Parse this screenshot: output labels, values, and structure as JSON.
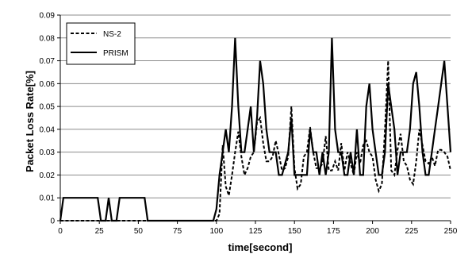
{
  "chart_data": {
    "type": "line",
    "title": "",
    "xlabel": "time[second]",
    "ylabel": "Packet Loss Rate[%]",
    "xlim": [
      0,
      250
    ],
    "ylim": [
      0,
      0.09
    ],
    "x_ticks": [
      0,
      25,
      50,
      75,
      100,
      125,
      150,
      175,
      200,
      225,
      250
    ],
    "x_tick_labels": [
      "0",
      "25",
      "50",
      "75",
      "100",
      "125",
      "150",
      "175",
      "200",
      "225",
      "250"
    ],
    "y_ticks": [
      0,
      0.01,
      0.02,
      0.03,
      0.04,
      0.05,
      0.06,
      0.07,
      0.08,
      0.09
    ],
    "y_tick_labels": [
      "0",
      "0.01",
      "0.02",
      "0.03",
      "0.04",
      "0.05",
      "0.06",
      "0.07",
      "0.08",
      "0.09"
    ],
    "grid": "horizontal",
    "legend_position": "top-left",
    "series": [
      {
        "name": "NS-2",
        "style": "dashed",
        "color": "#000000",
        "x": [
          0,
          5,
          10,
          15,
          20,
          25,
          30,
          35,
          40,
          45,
          50,
          55,
          60,
          65,
          70,
          75,
          80,
          85,
          90,
          95,
          100,
          102,
          104,
          106,
          108,
          110,
          112,
          114,
          116,
          118,
          120,
          122,
          124,
          126,
          128,
          130,
          132,
          134,
          136,
          138,
          140,
          142,
          144,
          146,
          148,
          150,
          152,
          154,
          156,
          158,
          160,
          162,
          164,
          166,
          168,
          170,
          172,
          174,
          176,
          178,
          180,
          182,
          184,
          186,
          188,
          190,
          192,
          194,
          196,
          198,
          200,
          202,
          204,
          206,
          208,
          210,
          212,
          214,
          216,
          218,
          220,
          222,
          224,
          226,
          228,
          230,
          232,
          234,
          236,
          238,
          240,
          242,
          244,
          246,
          248,
          250
        ],
        "y": [
          0,
          0,
          0,
          0,
          0,
          0,
          0,
          0,
          0,
          0,
          0,
          0,
          0,
          0,
          0,
          0,
          0,
          0,
          0,
          0,
          0,
          0.003,
          0.033,
          0.015,
          0.011,
          0.02,
          0.03,
          0.039,
          0.028,
          0.02,
          0.023,
          0.028,
          0.03,
          0.043,
          0.045,
          0.034,
          0.026,
          0.026,
          0.028,
          0.035,
          0.029,
          0.022,
          0.023,
          0.028,
          0.05,
          0.023,
          0.014,
          0.016,
          0.028,
          0.03,
          0.041,
          0.03,
          0.023,
          0.023,
          0.025,
          0.037,
          0.022,
          0.022,
          0.026,
          0.022,
          0.034,
          0.022,
          0.03,
          0.025,
          0.02,
          0.03,
          0.025,
          0.033,
          0.035,
          0.03,
          0.028,
          0.018,
          0.013,
          0.016,
          0.04,
          0.07,
          0.022,
          0.02,
          0.031,
          0.038,
          0.026,
          0.024,
          0.018,
          0.016,
          0.026,
          0.04,
          0.033,
          0.026,
          0.025,
          0.028,
          0.024,
          0.031,
          0.031,
          0.03,
          0.028,
          0.022
        ]
      },
      {
        "name": "PRISM",
        "style": "solid",
        "color": "#000000",
        "x": [
          0,
          2,
          5,
          10,
          15,
          20,
          24,
          26,
          29,
          31,
          33,
          36,
          38,
          40,
          45,
          50,
          54,
          56,
          60,
          65,
          70,
          75,
          80,
          85,
          90,
          95,
          98,
          100,
          102,
          104,
          106,
          108,
          110,
          112,
          114,
          116,
          118,
          120,
          122,
          124,
          126,
          128,
          130,
          132,
          134,
          136,
          138,
          140,
          142,
          144,
          146,
          148,
          150,
          152,
          154,
          156,
          158,
          160,
          162,
          164,
          166,
          168,
          170,
          172,
          174,
          176,
          178,
          180,
          182,
          184,
          186,
          188,
          190,
          192,
          194,
          196,
          198,
          200,
          202,
          204,
          206,
          208,
          210,
          212,
          214,
          216,
          218,
          220,
          222,
          224,
          226,
          228,
          230,
          232,
          234,
          236,
          238,
          240,
          242,
          244,
          246,
          248,
          250
        ],
        "y": [
          0,
          0.01,
          0.01,
          0.01,
          0.01,
          0.01,
          0.01,
          0,
          0,
          0.01,
          0,
          0,
          0.01,
          0.01,
          0.01,
          0.01,
          0.01,
          0,
          0,
          0,
          0,
          0,
          0,
          0,
          0,
          0,
          0,
          0.005,
          0.02,
          0.03,
          0.04,
          0.03,
          0.05,
          0.08,
          0.05,
          0.03,
          0.03,
          0.04,
          0.05,
          0.03,
          0.045,
          0.07,
          0.06,
          0.04,
          0.03,
          0.03,
          0.03,
          0.02,
          0.02,
          0.025,
          0.03,
          0.045,
          0.02,
          0.02,
          0.02,
          0.02,
          0.02,
          0.04,
          0.03,
          0.03,
          0.02,
          0.03,
          0.02,
          0.03,
          0.08,
          0.04,
          0.03,
          0.03,
          0.02,
          0.02,
          0.03,
          0.02,
          0.04,
          0.02,
          0.02,
          0.05,
          0.06,
          0.04,
          0.03,
          0.02,
          0.02,
          0.03,
          0.06,
          0.05,
          0.04,
          0.02,
          0.03,
          0.03,
          0.03,
          0.04,
          0.06,
          0.065,
          0.05,
          0.03,
          0.02,
          0.02,
          0.03,
          0.04,
          0.05,
          0.06,
          0.07,
          0.05,
          0.03
        ]
      }
    ]
  }
}
